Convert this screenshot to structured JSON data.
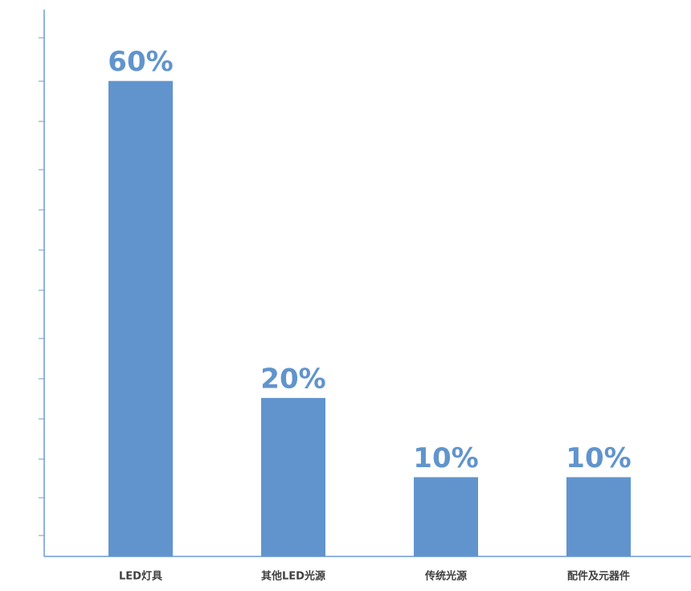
{
  "chart_data": {
    "type": "bar",
    "categories": [
      "LED灯具",
      "其他LED光源",
      "传统光源",
      "配件及元器件"
    ],
    "values": [
      60,
      20,
      10,
      10
    ],
    "value_labels": [
      "60%",
      "20%",
      "10%",
      "10%"
    ],
    "color": "#6194cd",
    "ylim": [
      0,
      69
    ]
  }
}
